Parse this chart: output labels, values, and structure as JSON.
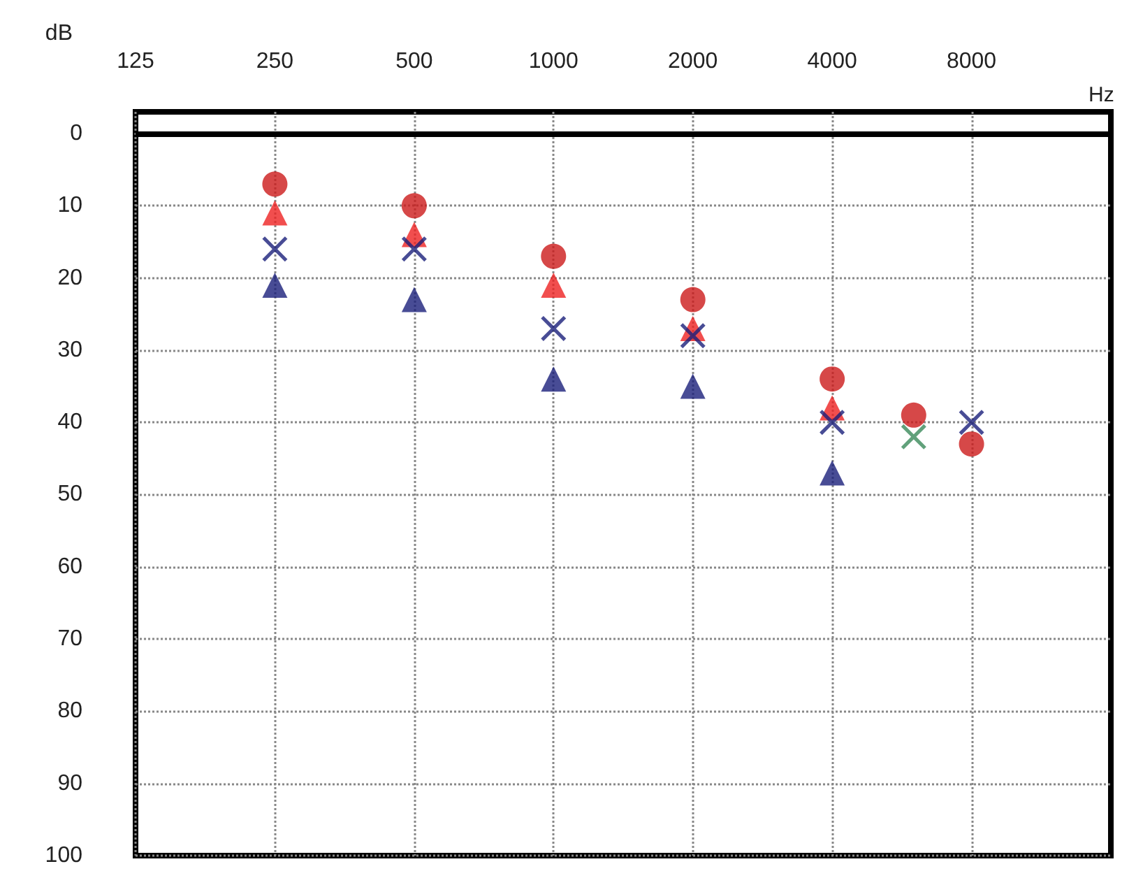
{
  "chart_data": {
    "type": "scatter",
    "xlabel": "Hz",
    "ylabel": "dB",
    "log": "x",
    "xlim": [
      125,
      16000
    ],
    "xticks": [
      125,
      250,
      500,
      1000,
      2000,
      4000,
      8000
    ],
    "ylim": [
      100,
      -3
    ],
    "yticks": [
      0,
      10,
      20,
      30,
      40,
      50,
      60,
      70,
      80,
      90,
      100
    ],
    "grid": true,
    "ref_lines": [
      {
        "axis": "y",
        "value": 0,
        "color": "#000000"
      }
    ],
    "series": [
      {
        "color": "#cc1a1a",
        "marker": "circle",
        "x": [
          250,
          500,
          1000,
          2000,
          4000,
          6000,
          8000
        ],
        "values": [
          7,
          10,
          17,
          23,
          34,
          39,
          43
        ]
      },
      {
        "color": "#ee2222",
        "marker": "triangle",
        "x": [
          250,
          500,
          1000,
          2000,
          4000
        ],
        "values": [
          11,
          14,
          21,
          27,
          38
        ]
      },
      {
        "color": "#1a1f7a",
        "marker": "cross",
        "x": [
          250,
          500,
          1000,
          2000,
          4000,
          8000
        ],
        "values": [
          16,
          16,
          27,
          28,
          40,
          40
        ]
      },
      {
        "color": "#1a1f7a",
        "marker": "triangle",
        "x": [
          250,
          500,
          1000,
          2000,
          4000
        ],
        "values": [
          21,
          23,
          34,
          35,
          47
        ]
      },
      {
        "color": "#3a8a5a",
        "marker": "cross",
        "x": [
          6000
        ],
        "values": [
          42
        ]
      }
    ]
  }
}
